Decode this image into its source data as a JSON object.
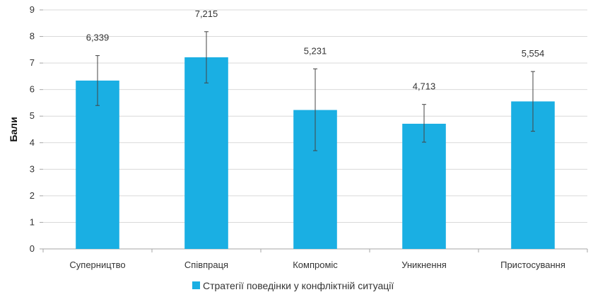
{
  "chart_data": {
    "type": "bar",
    "categories": [
      "Суперництво",
      "Співпраця",
      "Компроміс",
      "Уникнення",
      "Пристосування"
    ],
    "series": [
      {
        "name": "Стратегії поведінки у конфліктній ситуації",
        "values": [
          6.339,
          7.215,
          5.231,
          4.713,
          5.554
        ],
        "data_labels": [
          "6,339",
          "7,215",
          "5,231",
          "4,713",
          "5,554"
        ],
        "error_low": [
          5.4,
          6.25,
          3.7,
          4.02,
          4.43
        ],
        "error_high": [
          7.28,
          8.18,
          6.78,
          5.44,
          6.68
        ],
        "color": "#1aafe3"
      }
    ],
    "xlabel": "",
    "ylabel": "Бали",
    "ylim": [
      0,
      9
    ],
    "yticks": [
      "0",
      "1",
      "2",
      "3",
      "4",
      "5",
      "6",
      "7",
      "8",
      "9"
    ],
    "grid": true,
    "legend_position": "bottom"
  }
}
